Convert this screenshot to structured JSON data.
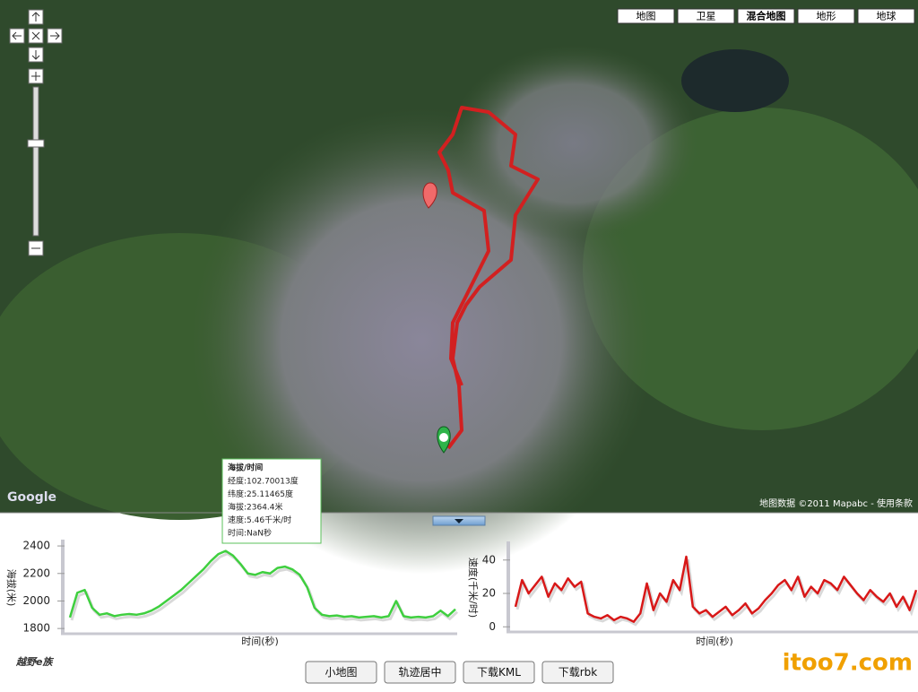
{
  "map_buttons": [
    "地图",
    "卫星",
    "混合地图",
    "地形",
    "地球"
  ],
  "map_logo": "Google",
  "map_attribution": "地图数据 ©2011 Mapabc - 使用条款",
  "tooltip": {
    "title": "海拔/时间",
    "lines": [
      "经度:102.70013度",
      "纬度:25.11465度",
      "海拔:2364.4米",
      "速度:5.46千米/时",
      "时间:NaN秒"
    ]
  },
  "chart_data": [
    {
      "type": "line",
      "y_label": "海拔(米)",
      "x_label": "时间(秒)",
      "color": "#3fcf3f",
      "ylim": [
        1775,
        2420
      ],
      "yticks": [
        1800,
        2000,
        2200,
        2400
      ],
      "values": [
        1880,
        2060,
        2080,
        1950,
        1900,
        1910,
        1890,
        1900,
        1905,
        1900,
        1910,
        1930,
        1960,
        2000,
        2040,
        2080,
        2130,
        2180,
        2230,
        2290,
        2340,
        2364,
        2330,
        2270,
        2200,
        2190,
        2210,
        2200,
        2240,
        2250,
        2230,
        2190,
        2100,
        1950,
        1900,
        1890,
        1895,
        1885,
        1890,
        1880,
        1885,
        1890,
        1880,
        1890,
        2000,
        1890,
        1880,
        1885,
        1880,
        1890,
        1930,
        1890,
        1940
      ]
    },
    {
      "type": "line",
      "y_label": "速度(千米/时)",
      "x_label": "时间(秒)",
      "color": "#d81818",
      "ylim": [
        -2,
        49
      ],
      "yticks": [
        0,
        20,
        40
      ],
      "values": [
        12,
        28,
        20,
        25,
        30,
        18,
        26,
        22,
        29,
        24,
        27,
        8,
        6,
        5,
        7,
        4,
        6,
        5,
        3,
        8,
        26,
        10,
        20,
        15,
        28,
        22,
        42,
        12,
        8,
        10,
        6,
        9,
        12,
        7,
        10,
        14,
        8,
        11,
        16,
        20,
        25,
        28,
        22,
        30,
        18,
        24,
        20,
        28,
        26,
        22,
        30,
        25,
        20,
        16,
        22,
        18,
        15,
        20,
        12,
        18,
        10,
        22
      ]
    }
  ],
  "buttons": [
    "小地图",
    "轨迹居中",
    "下载KML",
    "下载rbk"
  ],
  "brand": "越野e族",
  "logo": "itoo7.com"
}
